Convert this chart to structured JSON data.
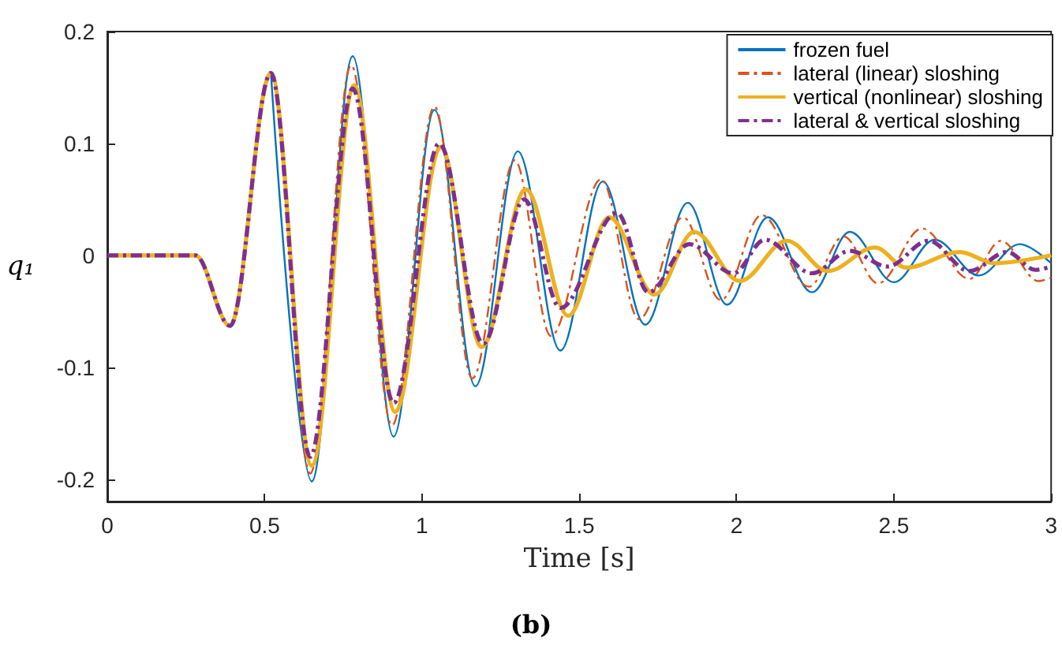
{
  "chart_data": {
    "type": "line",
    "xlabel": "Time [s]",
    "ylabel": "q₁",
    "annotations": [
      "(b)"
    ],
    "xlim": [
      0,
      3
    ],
    "xticks": [
      0,
      0.5,
      1,
      1.5,
      2,
      2.5,
      3
    ],
    "ylim": [
      -0.22,
      0.2
    ],
    "yticks": [
      -0.2,
      -0.1,
      0,
      0.1,
      0.2
    ],
    "grid": false,
    "legend": "top right",
    "marker": "none",
    "series": [
      {
        "name": "frozen fuel",
        "color": "#0072bd",
        "line_style": "solid",
        "x": [
          0.52,
          0.65,
          0.78,
          0.91,
          1.04,
          1.17,
          1.305,
          1.44,
          1.575,
          1.71,
          1.845,
          1.97,
          2.1,
          2.24,
          2.36,
          2.5,
          2.63,
          2.77,
          2.9,
          3
        ],
        "values": [
          0.163,
          -0.202,
          0.178,
          -0.162,
          0.13,
          -0.117,
          0.093,
          -0.085,
          0.066,
          -0.062,
          0.047,
          -0.044,
          0.034,
          -0.033,
          0.021,
          -0.024,
          0.014,
          -0.018,
          0.01,
          -0.007
        ]
      },
      {
        "name": "lateral (linear) sloshing",
        "color": "#d95319",
        "line_style": "dashed",
        "x": [
          0,
          0.28,
          0.39,
          0.52,
          0.645,
          0.775,
          0.905,
          1.04,
          1.16,
          1.295,
          1.41,
          1.57,
          1.69,
          1.83,
          1.95,
          2.08,
          2.23,
          2.34,
          2.45,
          2.59,
          2.74,
          2.84,
          2.96,
          3
        ],
        "values": [
          0,
          0,
          -0.063,
          0.163,
          -0.195,
          0.17,
          -0.152,
          0.133,
          -0.11,
          0.085,
          -0.072,
          0.068,
          -0.057,
          0.034,
          -0.04,
          0.036,
          -0.028,
          0.017,
          -0.025,
          0.024,
          -0.021,
          0.013,
          -0.023,
          -0.02
        ]
      },
      {
        "name": "vertical (nonlinear) sloshing",
        "color": "#edb120",
        "line_style": "solid",
        "x": [
          0,
          0.28,
          0.39,
          0.52,
          0.65,
          0.785,
          0.915,
          1.06,
          1.19,
          1.33,
          1.465,
          1.595,
          1.74,
          1.865,
          2.01,
          2.16,
          2.29,
          2.44,
          2.54,
          2.71,
          2.82,
          3
        ],
        "values": [
          0,
          0,
          -0.063,
          0.163,
          -0.188,
          0.152,
          -0.14,
          0.097,
          -0.082,
          0.059,
          -0.054,
          0.034,
          -0.035,
          0.021,
          -0.023,
          0.013,
          -0.014,
          0.007,
          -0.011,
          0.003,
          -0.007,
          0
        ]
      },
      {
        "name": "lateral & vertical sloshing",
        "color": "#7e2f8e",
        "line_style": "dashed",
        "x": [
          0,
          0.28,
          0.39,
          0.52,
          0.645,
          0.78,
          0.91,
          1.055,
          1.195,
          1.325,
          1.44,
          1.62,
          1.72,
          1.85,
          1.99,
          2.09,
          2.24,
          2.36,
          2.48,
          2.61,
          2.74,
          2.86,
          2.95,
          3
        ],
        "values": [
          0,
          0,
          -0.063,
          0.163,
          -0.18,
          0.149,
          -0.132,
          0.1,
          -0.079,
          0.05,
          -0.047,
          0.038,
          -0.033,
          0.01,
          -0.016,
          0.014,
          -0.016,
          0.004,
          -0.01,
          0.013,
          -0.014,
          0.003,
          -0.013,
          -0.01
        ]
      }
    ]
  }
}
